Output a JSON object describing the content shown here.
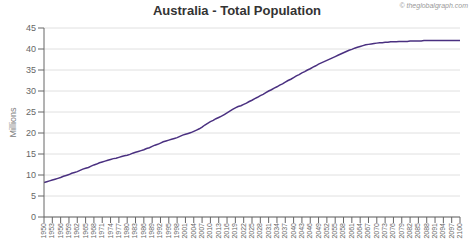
{
  "chart_data": {
    "type": "line",
    "title": "Australia - Total Population",
    "y_label": "Millions",
    "annotations": [
      "© theglobalgraph.com"
    ],
    "color": "#4a3080",
    "grid": true,
    "x": [
      1950,
      1951,
      1952,
      1953,
      1954,
      1955,
      1956,
      1957,
      1958,
      1959,
      1960,
      1961,
      1962,
      1963,
      1964,
      1965,
      1966,
      1967,
      1968,
      1969,
      1970,
      1971,
      1972,
      1973,
      1974,
      1975,
      1976,
      1977,
      1978,
      1979,
      1980,
      1981,
      1982,
      1983,
      1984,
      1985,
      1986,
      1987,
      1988,
      1989,
      1990,
      1991,
      1992,
      1993,
      1994,
      1995,
      1996,
      1997,
      1998,
      1999,
      2000,
      2001,
      2002,
      2003,
      2004,
      2005,
      2006,
      2007,
      2008,
      2009,
      2010,
      2011,
      2012,
      2013,
      2014,
      2015,
      2016,
      2017,
      2018,
      2019,
      2020,
      2021,
      2022,
      2023,
      2024,
      2025,
      2026,
      2027,
      2028,
      2029,
      2030,
      2031,
      2032,
      2033,
      2034,
      2035,
      2036,
      2037,
      2038,
      2039,
      2040,
      2041,
      2042,
      2043,
      2044,
      2045,
      2046,
      2047,
      2048,
      2049,
      2050,
      2051,
      2052,
      2053,
      2054,
      2055,
      2056,
      2057,
      2058,
      2059,
      2060,
      2061,
      2062,
      2063,
      2064,
      2065,
      2066,
      2067,
      2068,
      2069,
      2070,
      2071,
      2072,
      2073,
      2074,
      2075,
      2076,
      2077,
      2078,
      2079,
      2080,
      2081,
      2082,
      2083,
      2084,
      2085,
      2086,
      2087,
      2088,
      2089,
      2090,
      2091,
      2092,
      2093,
      2094,
      2095,
      2096,
      2097,
      2098,
      2099,
      2100
    ],
    "values": [
      8.2,
      8.4,
      8.6,
      8.8,
      9.0,
      9.2,
      9.4,
      9.7,
      9.9,
      10.1,
      10.4,
      10.6,
      10.8,
      11.1,
      11.4,
      11.6,
      11.8,
      12.1,
      12.4,
      12.6,
      12.9,
      13.1,
      13.3,
      13.5,
      13.7,
      13.9,
      14.0,
      14.2,
      14.4,
      14.6,
      14.7,
      14.9,
      15.2,
      15.4,
      15.6,
      15.8,
      16.0,
      16.3,
      16.5,
      16.8,
      17.1,
      17.3,
      17.6,
      17.9,
      18.1,
      18.3,
      18.5,
      18.7,
      18.9,
      19.2,
      19.5,
      19.7,
      19.9,
      20.1,
      20.4,
      20.7,
      21.0,
      21.4,
      21.9,
      22.3,
      22.7,
      23.0,
      23.4,
      23.7,
      24.0,
      24.4,
      24.8,
      25.2,
      25.6,
      26.0,
      26.3,
      26.5,
      26.8,
      27.1,
      27.5,
      27.8,
      28.2,
      28.5,
      28.9,
      29.2,
      29.6,
      30.0,
      30.3,
      30.7,
      31.0,
      31.4,
      31.7,
      32.1,
      32.5,
      32.8,
      33.2,
      33.6,
      33.9,
      34.3,
      34.6,
      35.0,
      35.3,
      35.7,
      36.0,
      36.4,
      36.7,
      37.0,
      37.3,
      37.6,
      37.9,
      38.2,
      38.5,
      38.8,
      39.1,
      39.4,
      39.7,
      39.9,
      40.2,
      40.4,
      40.6,
      40.8,
      41.0,
      41.1,
      41.2,
      41.3,
      41.4,
      41.5,
      41.5,
      41.6,
      41.6,
      41.7,
      41.7,
      41.7,
      41.8,
      41.8,
      41.8,
      41.8,
      41.9,
      41.9,
      41.9,
      41.9,
      41.9,
      42.0,
      42.0,
      42.0,
      42.0,
      42.0,
      42.0,
      42.0,
      42.0,
      42.0,
      42.0,
      42.0,
      42.0,
      42.0,
      42.0
    ],
    "xlim": [
      1950,
      2100
    ],
    "xticks": [
      1950,
      1953,
      1956,
      1959,
      1962,
      1965,
      1968,
      1971,
      1974,
      1977,
      1980,
      1983,
      1986,
      1989,
      1992,
      1995,
      1998,
      2001,
      2004,
      2007,
      2010,
      2013,
      2016,
      2019,
      2022,
      2025,
      2028,
      2031,
      2034,
      2037,
      2040,
      2043,
      2046,
      2049,
      2052,
      2055,
      2058,
      2061,
      2064,
      2067,
      2070,
      2073,
      2076,
      2079,
      2082,
      2085,
      2088,
      2091,
      2094,
      2097,
      2100
    ],
    "ylim": [
      0,
      45
    ],
    "yticks": [
      0,
      5,
      10,
      15,
      20,
      25,
      30,
      35,
      40,
      45
    ]
  }
}
